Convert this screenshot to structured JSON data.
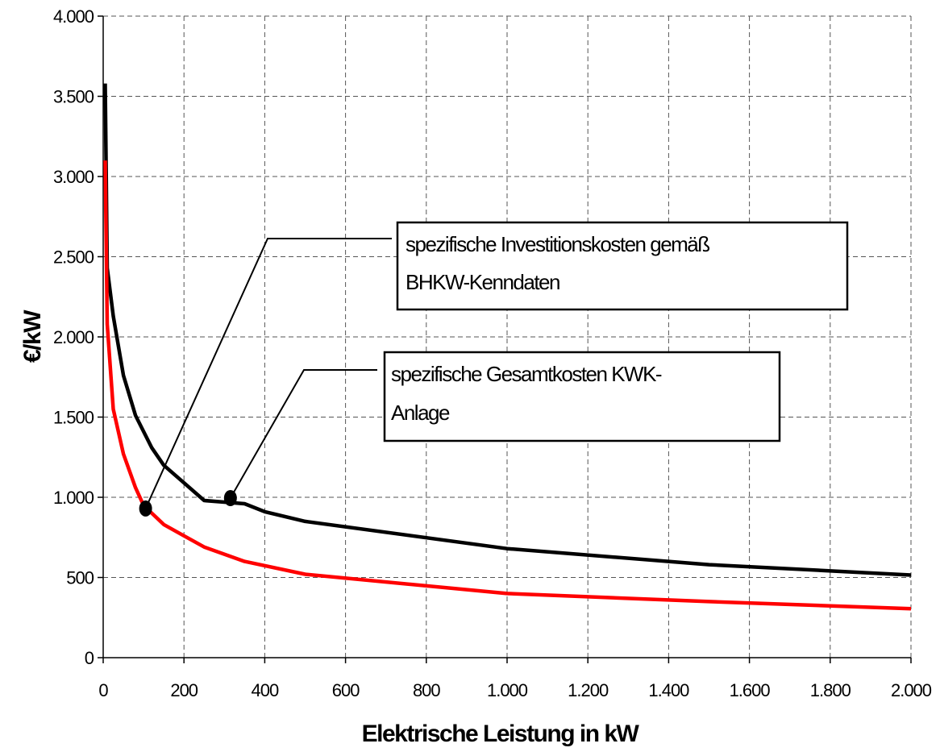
{
  "chart_data": {
    "type": "line",
    "title": "",
    "xlabel": "Elektrische Leistung in kW",
    "ylabel": "€/kW",
    "xlim": [
      0,
      2000
    ],
    "ylim": [
      0,
      4000
    ],
    "grid": true,
    "x_ticks": [
      {
        "value": 0,
        "label": "0"
      },
      {
        "value": 200,
        "label": "200"
      },
      {
        "value": 400,
        "label": "400"
      },
      {
        "value": 600,
        "label": "600"
      },
      {
        "value": 800,
        "label": "800"
      },
      {
        "value": 1000,
        "label": "1.000"
      },
      {
        "value": 1200,
        "label": "1.200"
      },
      {
        "value": 1400,
        "label": "1.400"
      },
      {
        "value": 1600,
        "label": "1.600"
      },
      {
        "value": 1800,
        "label": "1.800"
      },
      {
        "value": 2000,
        "label": "2.000"
      }
    ],
    "y_ticks": [
      {
        "value": 0,
        "label": "0"
      },
      {
        "value": 500,
        "label": "500"
      },
      {
        "value": 1000,
        "label": "1.000"
      },
      {
        "value": 1500,
        "label": "1.500"
      },
      {
        "value": 2000,
        "label": "2.000"
      },
      {
        "value": 2500,
        "label": "2.500"
      },
      {
        "value": 3000,
        "label": "3.000"
      },
      {
        "value": 3500,
        "label": "3.500"
      },
      {
        "value": 4000,
        "label": "4.000"
      }
    ],
    "series": [
      {
        "key": "gesamtkosten",
        "color": "#000000",
        "x": [
          5,
          10,
          25,
          50,
          80,
          120,
          150,
          200,
          250,
          300,
          350,
          400,
          500,
          1000,
          1500,
          2000
        ],
        "y": [
          3580,
          2430,
          2130,
          1760,
          1510,
          1310,
          1200,
          1090,
          980,
          970,
          960,
          910,
          850,
          680,
          580,
          515
        ]
      },
      {
        "key": "investitionskosten",
        "color": "#ff0000",
        "x": [
          5,
          10,
          25,
          50,
          80,
          100,
          150,
          200,
          250,
          350,
          500,
          1000,
          1500,
          2000
        ],
        "y": [
          3100,
          2080,
          1550,
          1270,
          1060,
          950,
          830,
          760,
          690,
          600,
          520,
          400,
          350,
          305
        ]
      }
    ],
    "annotations": [
      {
        "key": "investition",
        "lines": [
          "spezifische Investitionskosten gemäß",
          "BHKW-Kenndaten"
        ],
        "points_to_series": "investitionskosten",
        "point": [
          105,
          930
        ]
      },
      {
        "key": "gesamt",
        "lines": [
          "spezifische Gesamtkosten KWK-",
          "Anlage"
        ],
        "points_to_series": "gesamtkosten",
        "point": [
          315,
          995
        ]
      }
    ]
  }
}
